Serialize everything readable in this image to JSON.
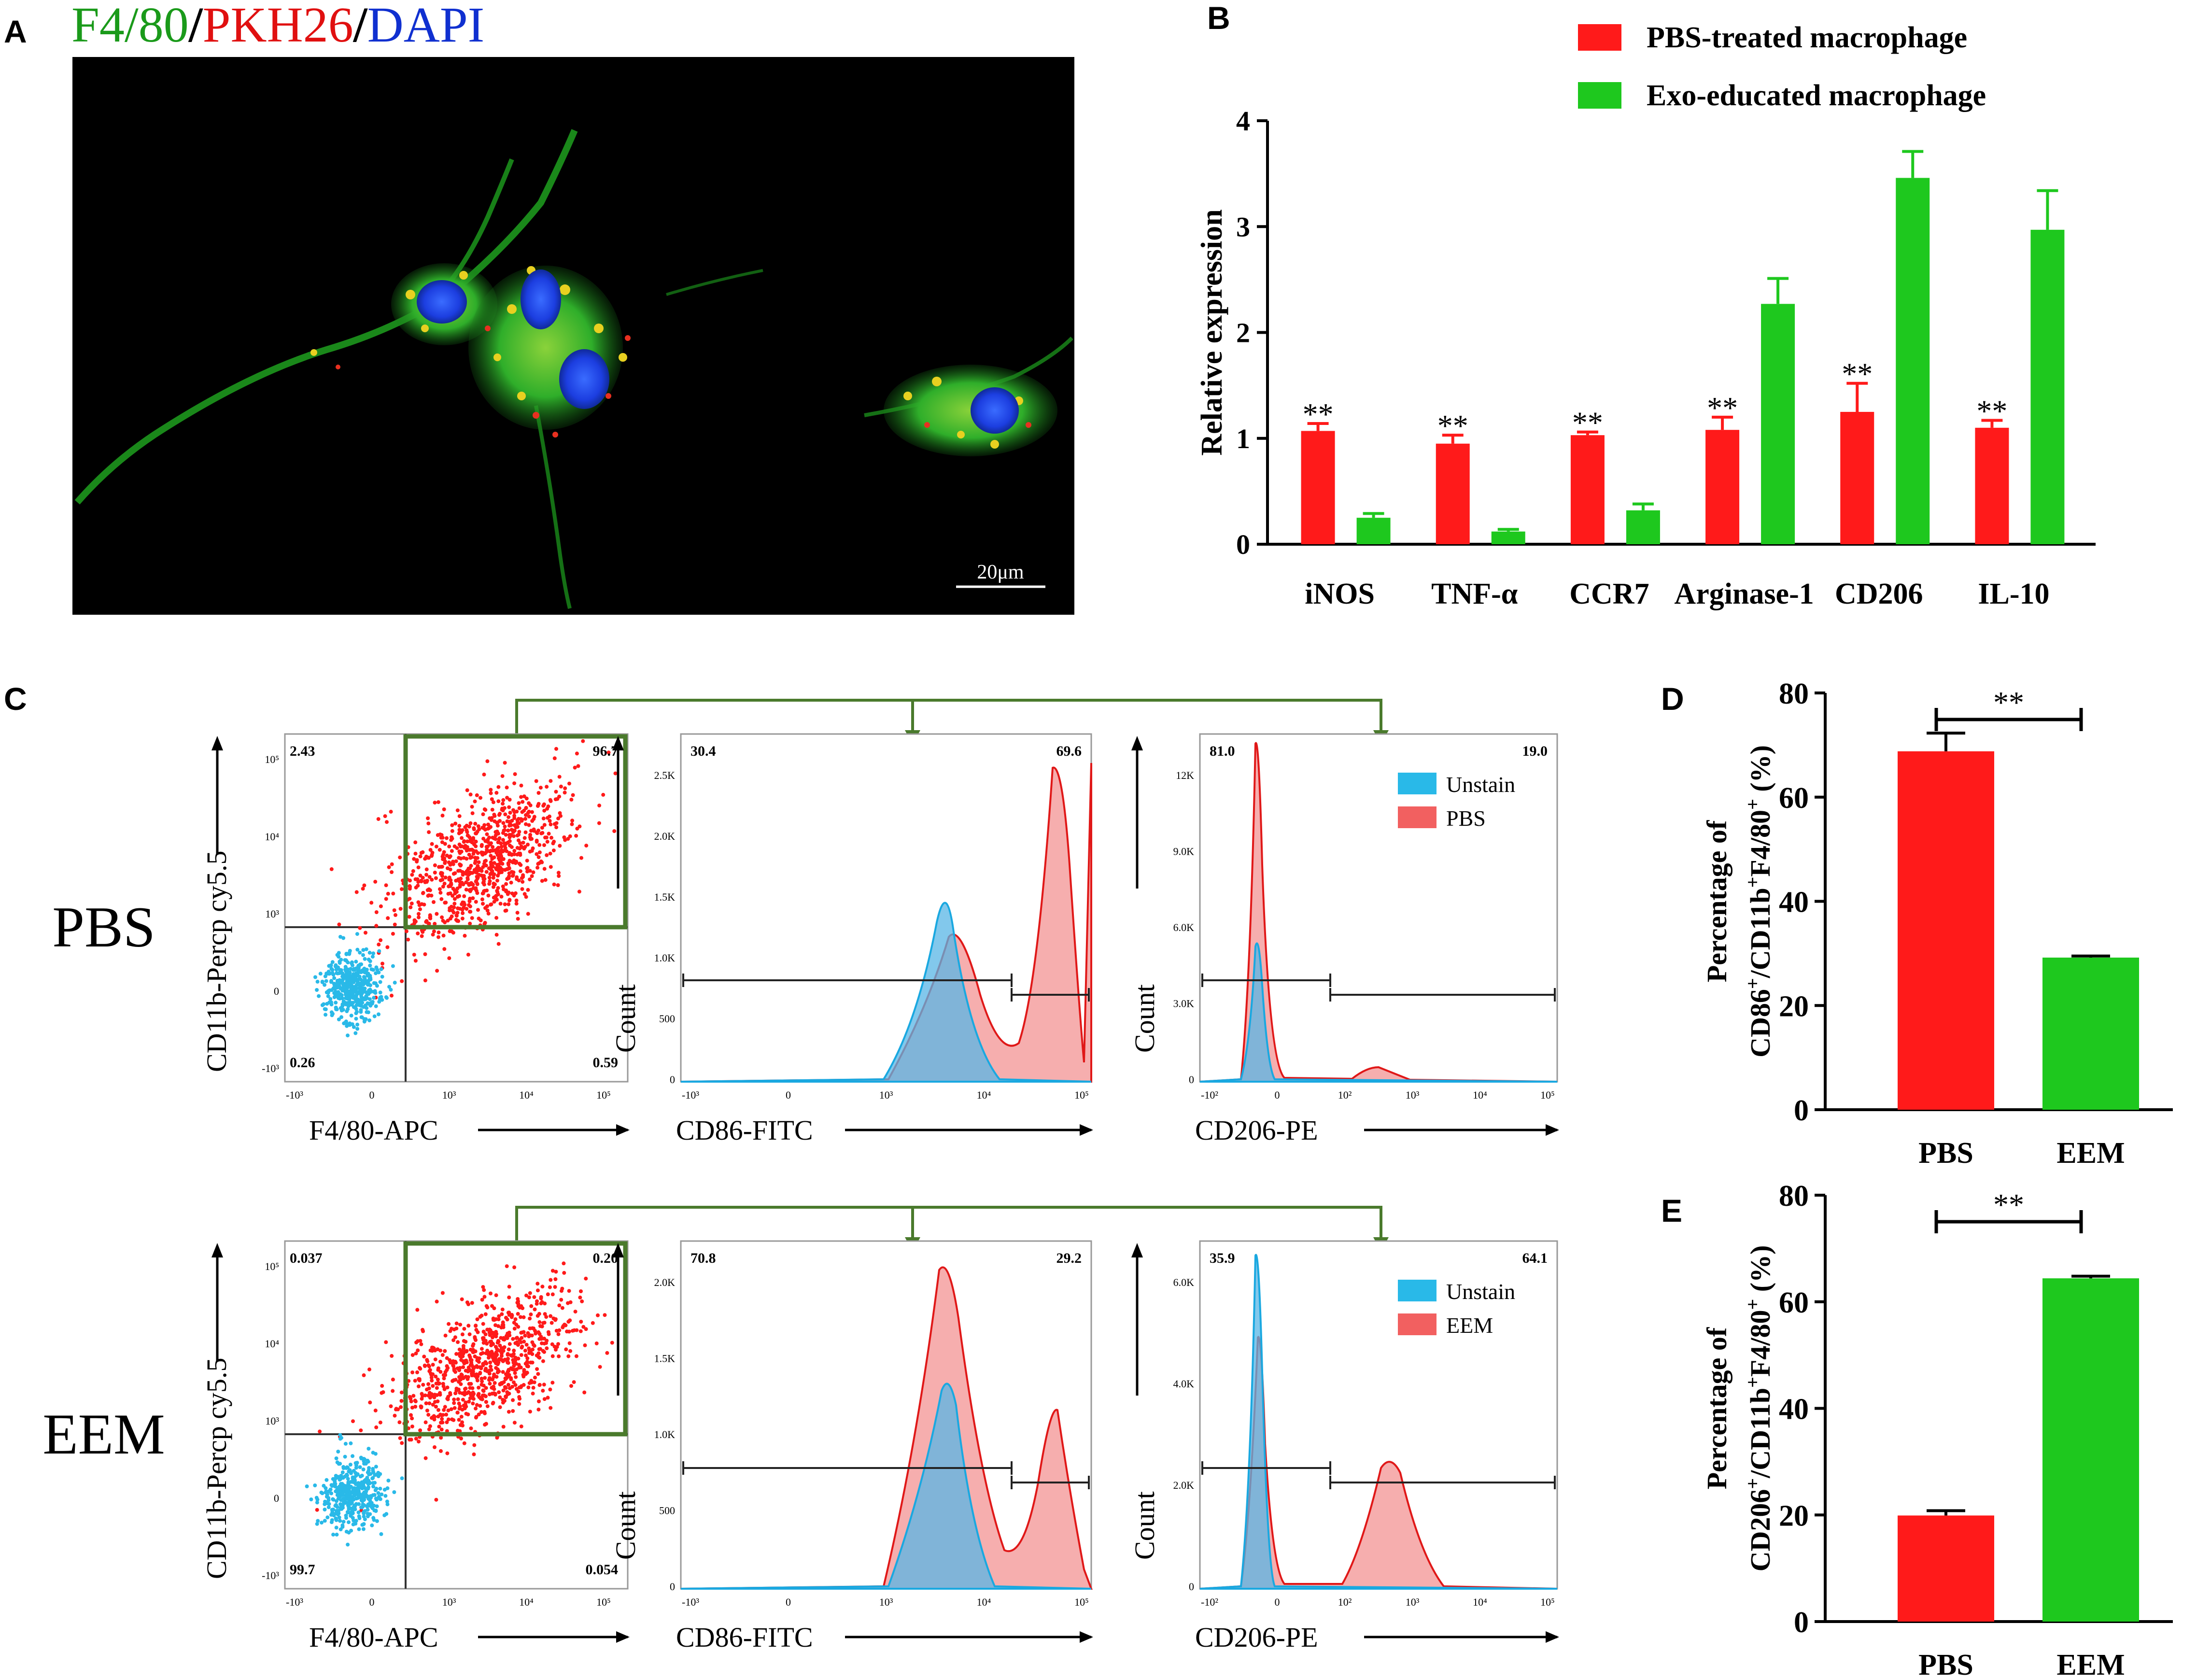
{
  "panels": {
    "A": {
      "letter": "A",
      "stain_parts": [
        "F4/80",
        "/",
        "PKH26",
        "/",
        "DAPI"
      ],
      "stain_colors": [
        "#1a9a1a",
        "#000000",
        "#e01010",
        "#000000",
        "#1030d0"
      ],
      "scale_bar": "20μm"
    },
    "B": {
      "letter": "B"
    },
    "C": {
      "letter": "C",
      "rows": [
        {
          "group": "PBS",
          "scatter": {
            "ylabel": "CD11b-Percp cy5.5",
            "xlabel": "F4/80-APC",
            "q_ul": "2.43",
            "q_ur": "96.7",
            "q_ll": "0.26",
            "q_lr": "0.59"
          },
          "cd86": {
            "xlabel": "CD86-FITC",
            "ylabel": "Count",
            "left_pct": "30.4",
            "right_pct": "69.6",
            "yticks": [
              "0",
              "500",
              "1.0K",
              "1.5K",
              "2.0K",
              "2.5K"
            ]
          },
          "cd206": {
            "xlabel": "CD206-PE",
            "ylabel": "Count",
            "left_pct": "81.0",
            "right_pct": "19.0",
            "yticks": [
              "0",
              "3.0K",
              "6.0K",
              "9.0K",
              "12K"
            ]
          },
          "legend": [
            "Unstain",
            "PBS"
          ]
        },
        {
          "group": "EEM",
          "scatter": {
            "ylabel": "CD11b-Percp cy5.5",
            "xlabel": "F4/80-APC",
            "q_ul": "0.037",
            "q_ur": "0.20",
            "q_ll": "99.7",
            "q_lr": "0.054"
          },
          "cd86": {
            "xlabel": "CD86-FITC",
            "ylabel": "Count",
            "left_pct": "70.8",
            "right_pct": "29.2",
            "yticks": [
              "0",
              "500",
              "1.0K",
              "1.5K",
              "2.0K"
            ]
          },
          "cd206": {
            "xlabel": "CD206-PE",
            "ylabel": "Count",
            "left_pct": "35.9",
            "right_pct": "64.1",
            "yticks": [
              "0",
              "2.0K",
              "4.0K",
              "6.0K"
            ]
          },
          "legend": [
            "Unstain",
            "EEM"
          ]
        }
      ],
      "flow_xticks": [
        "-10³",
        "0",
        "10³",
        "10⁴",
        "10⁵"
      ],
      "cd206_xticks": [
        "-10²",
        "0",
        "10²",
        "10³",
        "10⁴",
        "10⁵"
      ],
      "scatter_yticks": [
        "-10³",
        "0",
        "10³",
        "10⁴",
        "10⁵"
      ]
    },
    "D": {
      "letter": "D"
    },
    "E": {
      "letter": "E"
    }
  },
  "colors": {
    "pbs": "#ff1a1a",
    "exo": "#1ec81e",
    "unstain": "#29b9e8",
    "gate": "#4a7a2c"
  },
  "chart_data": [
    {
      "id": "B",
      "type": "bar",
      "title": "",
      "xlabel": "",
      "ylabel": "Relative expression",
      "ylim": [
        0,
        4
      ],
      "yticks": [
        "0",
        "1",
        "2",
        "3",
        "4"
      ],
      "categories": [
        "iNOS",
        "TNF-α",
        "CCR7",
        "Arginase-1",
        "CD206",
        "IL-10"
      ],
      "series": [
        {
          "name": "PBS-treated macrophage",
          "color": "#ff1a1a",
          "values": [
            1.07,
            0.95,
            1.03,
            1.08,
            1.25,
            1.1
          ],
          "errors": [
            0.07,
            0.08,
            0.03,
            0.12,
            0.27,
            0.07
          ]
        },
        {
          "name": "Exo-educated macrophage",
          "color": "#1ec81e",
          "values": [
            0.25,
            0.12,
            0.32,
            2.27,
            3.46,
            2.97
          ],
          "errors": [
            0.04,
            0.02,
            0.06,
            0.24,
            0.25,
            0.37
          ]
        }
      ],
      "annotations": [
        "**",
        "**",
        "**",
        "**",
        "**",
        "**"
      ],
      "legend_position": "top-right"
    },
    {
      "id": "D",
      "type": "bar",
      "ylabel_parts": [
        "Percentage of",
        "CD86",
        "+",
        "/CD11b",
        "+",
        "F4/80",
        "+",
        " (%)"
      ],
      "ylim": [
        0,
        80
      ],
      "yticks": [
        "0",
        "20",
        "40",
        "60",
        "80"
      ],
      "categories": [
        "PBS",
        "EEM"
      ],
      "values": [
        68.8,
        29.2
      ],
      "errors": [
        3.5,
        0.3
      ],
      "colors": [
        "#ff1a1a",
        "#1ec81e"
      ],
      "significance": "**"
    },
    {
      "id": "E",
      "type": "bar",
      "ylabel_parts": [
        "Percentage of",
        "CD206",
        "+",
        "/CD11b",
        "+",
        "F4/80",
        "+",
        " (%)"
      ],
      "ylim": [
        0,
        80
      ],
      "yticks": [
        "0",
        "20",
        "40",
        "60",
        "80"
      ],
      "categories": [
        "PBS",
        "EEM"
      ],
      "values": [
        19.9,
        64.4
      ],
      "errors": [
        0.9,
        0.4
      ],
      "colors": [
        "#ff1a1a",
        "#1ec81e"
      ],
      "significance": "**"
    }
  ]
}
